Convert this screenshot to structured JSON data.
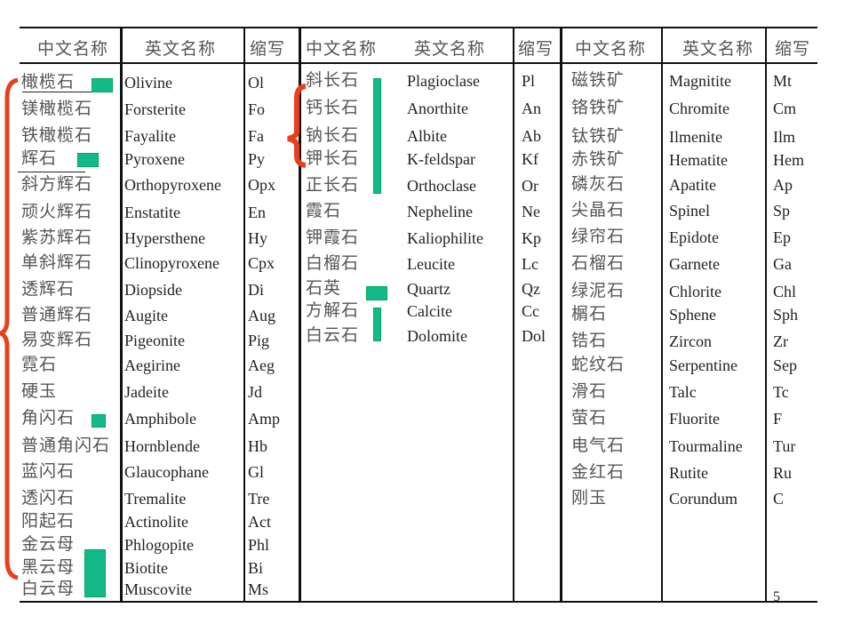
{
  "headers": {
    "chinese": "中文名称",
    "english": "英文名称",
    "abbr": "缩写"
  },
  "groups": [
    {
      "rows": [
        [
          "橄榄石",
          "Olivine",
          "Ol"
        ],
        [
          "镁橄榄石",
          "Forsterite",
          "Fo"
        ],
        [
          "铁橄榄石",
          "Fayalite",
          "Fa"
        ],
        [
          "辉石",
          "Pyroxene",
          "Py"
        ],
        [
          "斜方辉石",
          "Orthopyroxene",
          "Opx"
        ],
        [
          "顽火辉石",
          "Enstatite",
          "En"
        ],
        [
          "紫苏辉石",
          "Hypersthene",
          "Hy"
        ],
        [
          "单斜辉石",
          "Clinopyroxene",
          "Cpx"
        ],
        [
          "透辉石",
          "Diopside",
          "Di"
        ],
        [
          "普通辉石",
          "Augite",
          "Aug"
        ],
        [
          "易变辉石",
          "Pigeonite",
          "Pig"
        ],
        [
          "霓石",
          "Aegirine",
          "Aeg"
        ],
        [
          "硬玉",
          "Jadeite",
          "Jd"
        ],
        [
          "角闪石",
          "Amphibole",
          "Amp"
        ],
        [
          "普通角闪石",
          "Hornblende",
          "Hb"
        ],
        [
          "蓝闪石",
          "Glaucophane",
          "Gl"
        ],
        [
          "透闪石",
          "Tremalite",
          "Tre"
        ],
        [
          "阳起石",
          "Actinolite",
          "Act"
        ],
        [
          "金云母",
          "Phlogopite",
          "Phl"
        ],
        [
          "黑云母",
          "Biotite",
          "Bi"
        ],
        [
          "白云母",
          "Muscovite",
          "Ms"
        ]
      ]
    },
    {
      "rows": [
        [
          "斜长石",
          "Plagioclase",
          "Pl"
        ],
        [
          "钙长石",
          "Anorthite",
          "An"
        ],
        [
          "钠长石",
          "Albite",
          "Ab"
        ],
        [
          "钾长石",
          "K-feldspar",
          "Kf"
        ],
        [
          "正长石",
          "Orthoclase",
          "Or"
        ],
        [
          "霞石",
          "Nepheline",
          "Ne"
        ],
        [
          "钾霞石",
          "Kaliophilite",
          "Kp"
        ],
        [
          "白榴石",
          "Leucite",
          "Lc"
        ],
        [
          "石英",
          "Quartz",
          "Qz"
        ],
        [
          "方解石",
          "Calcite",
          "Cc"
        ],
        [
          "白云石",
          "Dolomite",
          "Dol"
        ]
      ]
    },
    {
      "rows": [
        [
          "磁铁矿",
          "Magnitite",
          "Mt"
        ],
        [
          "铬铁矿",
          "Chromite",
          "Cm"
        ],
        [
          "钛铁矿",
          "Ilmenite",
          "Ilm"
        ],
        [
          "赤铁矿",
          "Hematite",
          "Hem"
        ],
        [
          "磷灰石",
          "Apatite",
          "Ap"
        ],
        [
          "尖晶石",
          "Spinel",
          "Sp"
        ],
        [
          "绿帘石",
          "Epidote",
          "Ep"
        ],
        [
          "石榴石",
          "Garnete",
          "Ga"
        ],
        [
          "绿泥石",
          "Chlorite",
          "Chl"
        ],
        [
          "榍石",
          "Sphene",
          "Sph"
        ],
        [
          "锆石",
          "Zircon",
          "Zr"
        ],
        [
          "蛇纹石",
          "Serpentine",
          "Sep"
        ],
        [
          "滑石",
          "Talc",
          "Tc"
        ],
        [
          "萤石",
          "Fluorite",
          "F"
        ],
        [
          "电气石",
          "Tourmaline",
          "Tur"
        ],
        [
          "金红石",
          "Rutite",
          "Ru"
        ],
        [
          "刚玉",
          "Corundum",
          "C"
        ]
      ]
    }
  ],
  "page_number": "5",
  "colors": {
    "highlight": "#14b98a",
    "brace": "#e8401c"
  }
}
